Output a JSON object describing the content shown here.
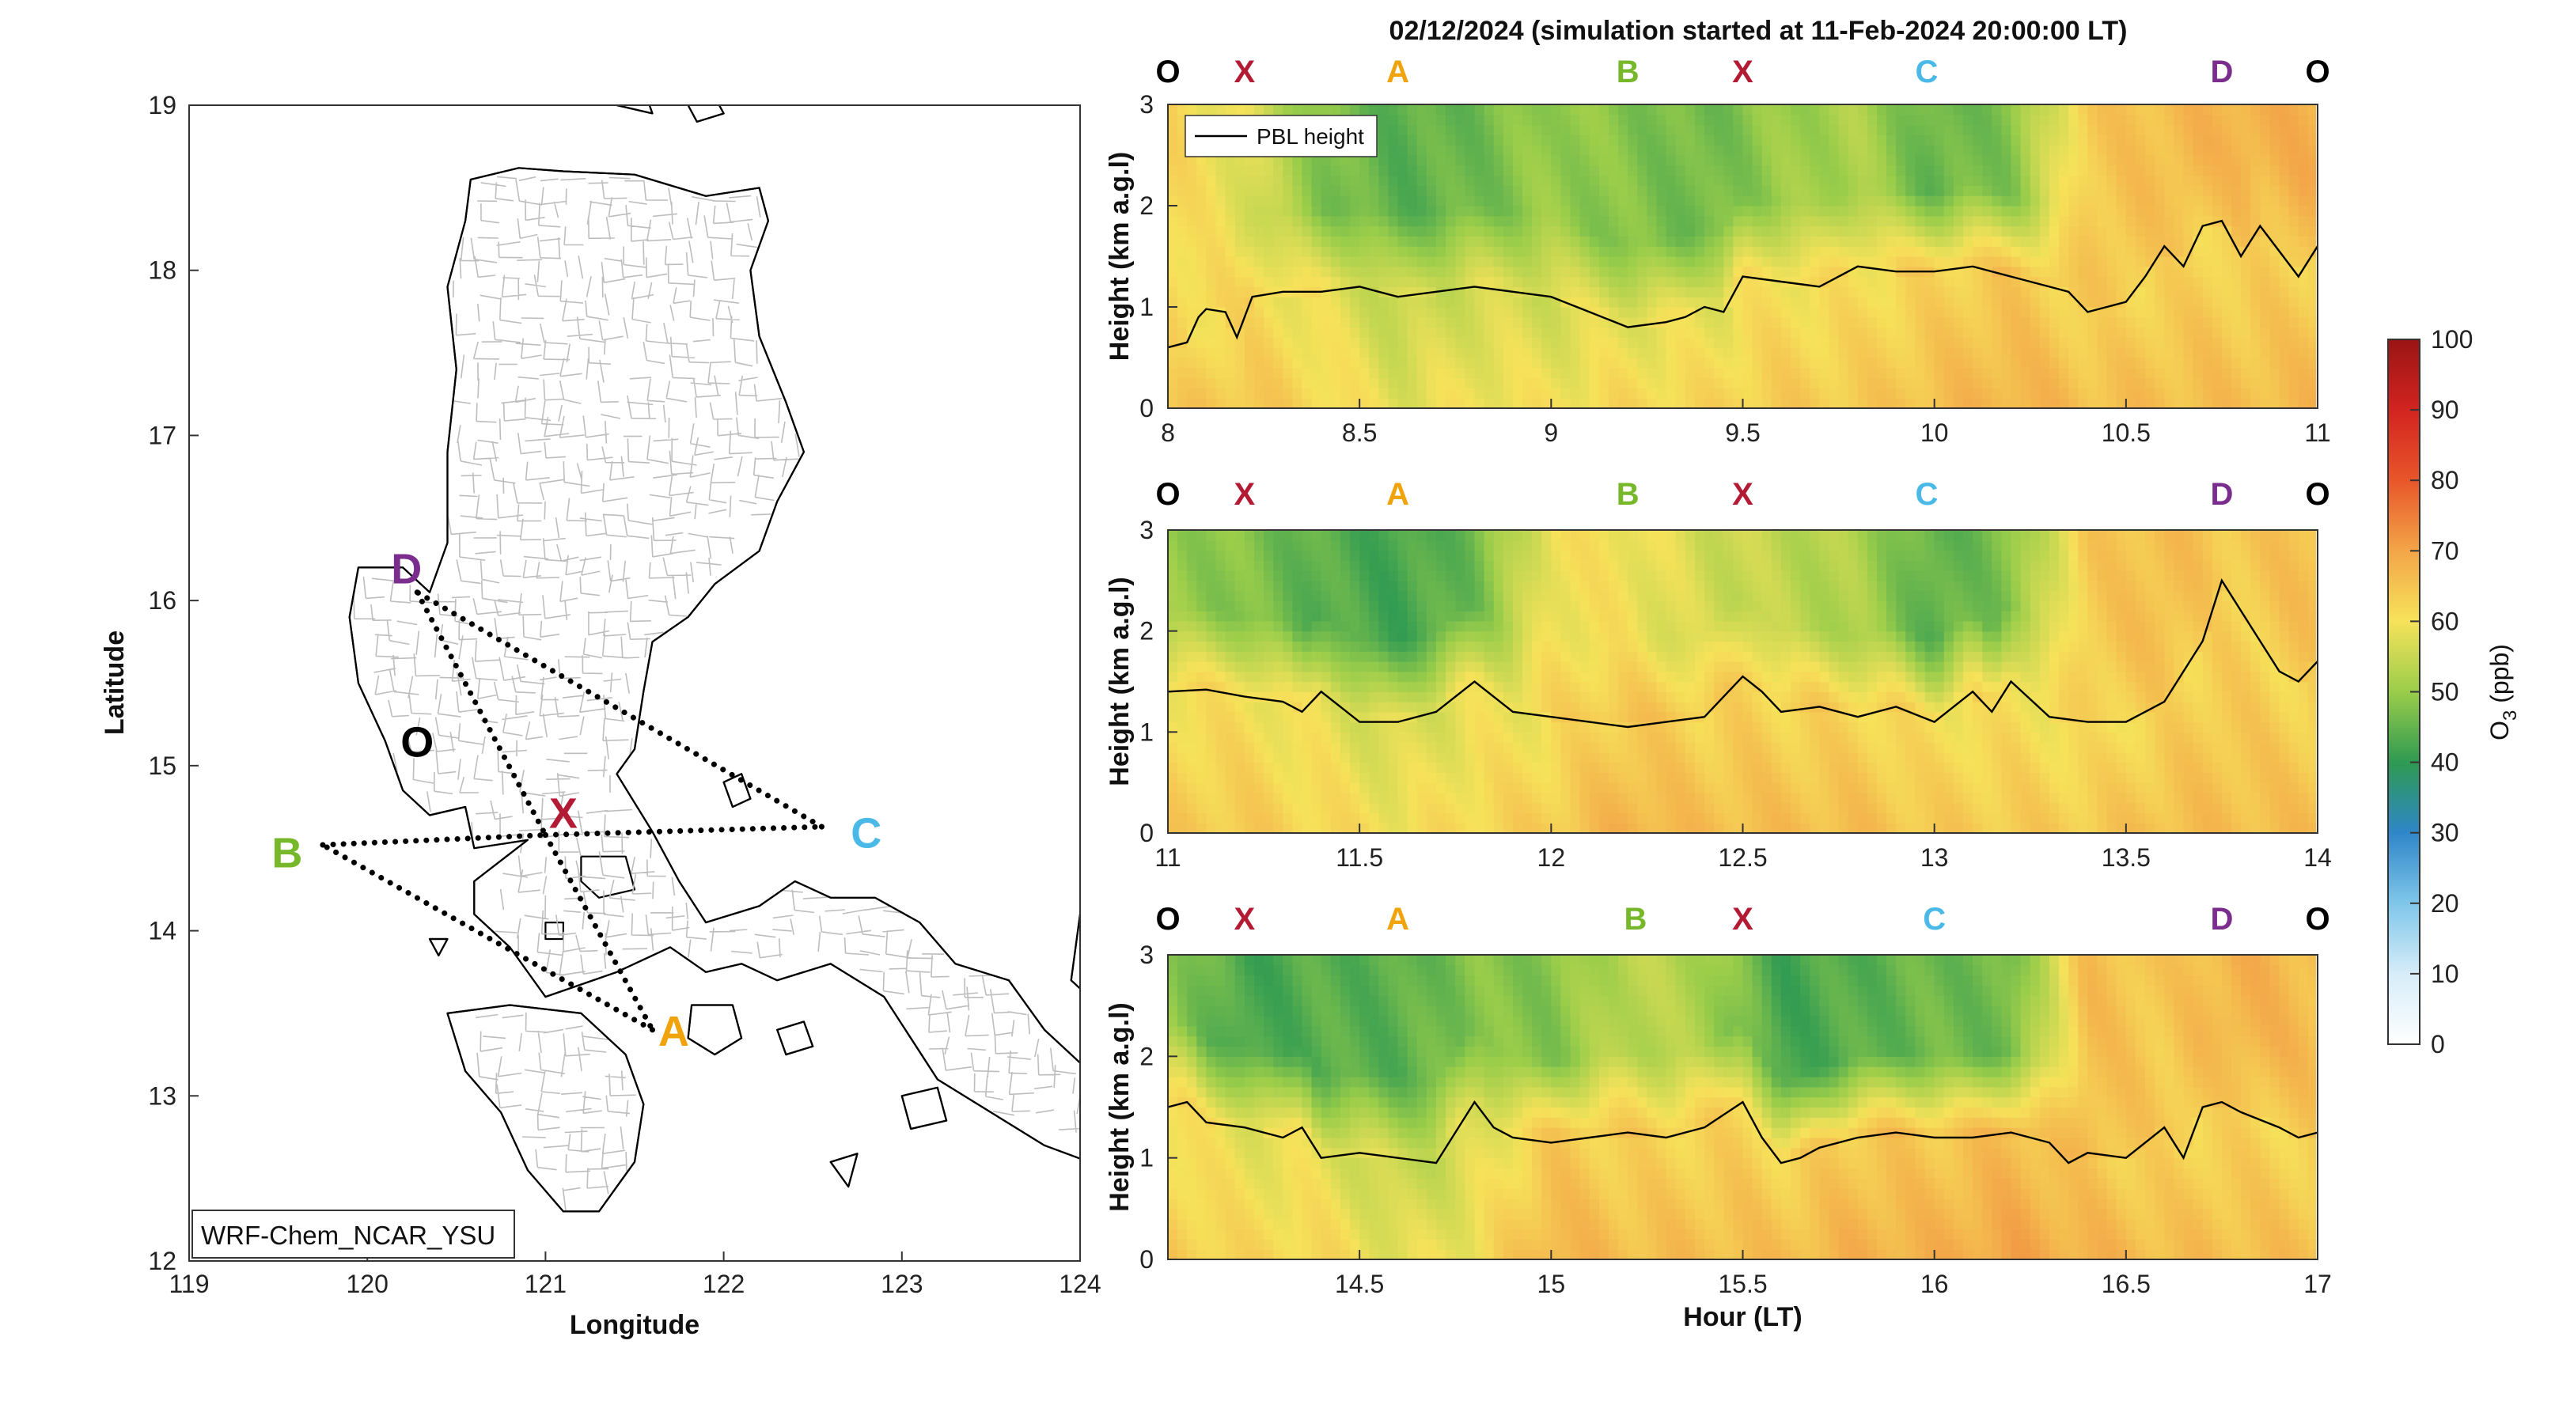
{
  "colors": {
    "O": "#000000",
    "X": "#b31b34",
    "A": "#f0a30a",
    "B": "#76b82a",
    "C": "#4ab9e8",
    "D": "#7b2d8e",
    "pbl_line": "#000000",
    "map_coast": "#000000",
    "map_border": "#bdbdbd",
    "route": "#000000"
  },
  "map": {
    "xlabel": "Longitude",
    "ylabel": "Latitude",
    "xlim": [
      119,
      124
    ],
    "ylim": [
      12,
      19
    ],
    "xticks": [
      "119",
      "120",
      "121",
      "122",
      "123",
      "124"
    ],
    "yticks": [
      "12",
      "13",
      "14",
      "15",
      "16",
      "17",
      "18",
      "19"
    ],
    "model_label": "WRF-Chem_NCAR_YSU",
    "points": [
      {
        "id": "O",
        "lon": 120.15,
        "lat": 15.15,
        "lab_lon": 120.28,
        "lab_lat": 15.15
      },
      {
        "id": "X",
        "lon": 121.0,
        "lat": 14.58,
        "lab_lon": 121.1,
        "lab_lat": 14.72
      },
      {
        "id": "A",
        "lon": 121.6,
        "lat": 13.4,
        "lab_lon": 121.72,
        "lab_lat": 13.4
      },
      {
        "id": "B",
        "lon": 119.75,
        "lat": 14.52,
        "lab_lon": 119.55,
        "lab_lat": 14.48
      },
      {
        "id": "C",
        "lon": 122.55,
        "lat": 14.63,
        "lab_lon": 122.8,
        "lab_lat": 14.6
      },
      {
        "id": "D",
        "lon": 120.28,
        "lat": 16.05,
        "lab_lon": 120.22,
        "lab_lat": 16.2
      }
    ],
    "route_segments": [
      [
        "D",
        "X"
      ],
      [
        "X",
        "A"
      ],
      [
        "A",
        "B"
      ],
      [
        "B",
        "X"
      ],
      [
        "X",
        "C"
      ],
      [
        "C",
        "D"
      ]
    ]
  },
  "chart_data": [
    {
      "type": "heatmap",
      "title": "02/12/2024 (simulation started at 11-Feb-2024 20:00:00 LT)",
      "xlabel": "",
      "ylabel": "Height (km a.g.l)",
      "xlim": [
        8,
        11
      ],
      "ylim": [
        0,
        3
      ],
      "xticks": [
        "8",
        "8.5",
        "9",
        "9.5",
        "10",
        "10.5",
        "11"
      ],
      "yticks": [
        "0",
        "1",
        "2",
        "3"
      ],
      "legend": "PBL height",
      "legend_position": "top-left",
      "markers": [
        {
          "label": "O",
          "hour": 8.0
        },
        {
          "label": "X",
          "hour": 8.2
        },
        {
          "label": "A",
          "hour": 8.6
        },
        {
          "label": "B",
          "hour": 9.2
        },
        {
          "label": "X",
          "hour": 9.5
        },
        {
          "label": "C",
          "hour": 9.98
        },
        {
          "label": "D",
          "hour": 10.75
        },
        {
          "label": "O",
          "hour": 11.0
        }
      ],
      "pbl": {
        "x": [
          8.0,
          8.05,
          8.08,
          8.1,
          8.15,
          8.18,
          8.22,
          8.3,
          8.4,
          8.5,
          8.55,
          8.6,
          8.7,
          8.8,
          8.9,
          9.0,
          9.1,
          9.2,
          9.3,
          9.35,
          9.4,
          9.45,
          9.5,
          9.6,
          9.7,
          9.8,
          9.9,
          10.0,
          10.1,
          10.2,
          10.3,
          10.35,
          10.4,
          10.45,
          10.5,
          10.55,
          10.6,
          10.65,
          10.7,
          10.75,
          10.8,
          10.85,
          10.9,
          10.95,
          11.0
        ],
        "y": [
          0.6,
          0.65,
          0.9,
          0.98,
          0.95,
          0.7,
          1.1,
          1.15,
          1.15,
          1.2,
          1.15,
          1.1,
          1.15,
          1.2,
          1.15,
          1.1,
          0.95,
          0.8,
          0.85,
          0.9,
          1.0,
          0.95,
          1.3,
          1.25,
          1.2,
          1.4,
          1.35,
          1.35,
          1.4,
          1.3,
          1.2,
          1.15,
          0.95,
          1.0,
          1.05,
          1.3,
          1.6,
          1.4,
          1.8,
          1.85,
          1.5,
          1.8,
          1.55,
          1.3,
          1.6
        ]
      },
      "o3_profile_ppb": {
        "x": [
          8.0,
          8.2,
          8.4,
          8.6,
          8.8,
          9.0,
          9.2,
          9.4,
          9.6,
          9.8,
          10.0,
          10.2,
          10.4,
          10.6,
          10.8,
          11.0
        ],
        "below_pbl": [
          62,
          63,
          60,
          56,
          58,
          58,
          60,
          60,
          62,
          62,
          64,
          66,
          64,
          64,
          64,
          65
        ],
        "above_pbl": [
          62,
          58,
          48,
          44,
          46,
          50,
          48,
          46,
          50,
          52,
          45,
          48,
          64,
          66,
          68,
          68
        ]
      }
    },
    {
      "type": "heatmap",
      "title": "",
      "xlabel": "",
      "ylabel": "Height (km a.g.l)",
      "xlim": [
        11,
        14
      ],
      "ylim": [
        0,
        3
      ],
      "xticks": [
        "11",
        "11.5",
        "12",
        "12.5",
        "13",
        "13.5",
        "14"
      ],
      "yticks": [
        "0",
        "1",
        "2",
        "3"
      ],
      "markers": [
        {
          "label": "O",
          "hour": 11.0
        },
        {
          "label": "X",
          "hour": 11.2
        },
        {
          "label": "A",
          "hour": 11.6
        },
        {
          "label": "B",
          "hour": 12.2
        },
        {
          "label": "X",
          "hour": 12.5
        },
        {
          "label": "C",
          "hour": 12.98
        },
        {
          "label": "D",
          "hour": 13.75
        },
        {
          "label": "O",
          "hour": 14.0
        }
      ],
      "pbl": {
        "x": [
          11.0,
          11.1,
          11.2,
          11.3,
          11.35,
          11.4,
          11.5,
          11.6,
          11.7,
          11.8,
          11.9,
          12.0,
          12.1,
          12.2,
          12.3,
          12.4,
          12.5,
          12.55,
          12.6,
          12.7,
          12.8,
          12.9,
          13.0,
          13.1,
          13.15,
          13.2,
          13.3,
          13.4,
          13.5,
          13.55,
          13.6,
          13.7,
          13.75,
          13.8,
          13.85,
          13.9,
          13.95,
          14.0
        ],
        "y": [
          1.4,
          1.42,
          1.35,
          1.3,
          1.2,
          1.4,
          1.1,
          1.1,
          1.2,
          1.5,
          1.2,
          1.15,
          1.1,
          1.05,
          1.1,
          1.15,
          1.55,
          1.4,
          1.2,
          1.25,
          1.15,
          1.25,
          1.1,
          1.4,
          1.2,
          1.5,
          1.15,
          1.1,
          1.1,
          1.2,
          1.3,
          1.9,
          2.5,
          2.2,
          1.9,
          1.6,
          1.5,
          1.7
        ]
      },
      "o3_profile_ppb": {
        "x": [
          11.0,
          11.2,
          11.4,
          11.6,
          11.8,
          12.0,
          12.2,
          12.4,
          12.6,
          12.8,
          13.0,
          13.2,
          13.4,
          13.6,
          13.8,
          14.0
        ],
        "below_pbl": [
          62,
          62,
          60,
          58,
          60,
          62,
          66,
          64,
          64,
          64,
          62,
          62,
          62,
          64,
          64,
          64
        ],
        "above_pbl": [
          50,
          48,
          44,
          42,
          46,
          60,
          60,
          56,
          54,
          52,
          44,
          48,
          64,
          66,
          64,
          66
        ]
      }
    },
    {
      "type": "heatmap",
      "title": "",
      "xlabel": "Hour (LT)",
      "ylabel": "Height (km a.g.l)",
      "xlim": [
        14,
        17
      ],
      "ylim": [
        0,
        3
      ],
      "xticks": [
        "14.5",
        "15",
        "15.5",
        "16",
        "16.5",
        "17"
      ],
      "yticks": [
        "0",
        "1",
        "2",
        "3"
      ],
      "markers": [
        {
          "label": "O",
          "hour": 14.0
        },
        {
          "label": "X",
          "hour": 14.2
        },
        {
          "label": "A",
          "hour": 14.6
        },
        {
          "label": "B",
          "hour": 15.22
        },
        {
          "label": "X",
          "hour": 15.5
        },
        {
          "label": "C",
          "hour": 16.0
        },
        {
          "label": "D",
          "hour": 16.75
        },
        {
          "label": "O",
          "hour": 17.0
        }
      ],
      "pbl": {
        "x": [
          14.0,
          14.05,
          14.1,
          14.2,
          14.3,
          14.35,
          14.4,
          14.5,
          14.6,
          14.7,
          14.8,
          14.85,
          14.9,
          15.0,
          15.1,
          15.2,
          15.3,
          15.4,
          15.5,
          15.55,
          15.6,
          15.65,
          15.7,
          15.8,
          15.9,
          16.0,
          16.1,
          16.2,
          16.3,
          16.35,
          16.4,
          16.5,
          16.6,
          16.65,
          16.7,
          16.75,
          16.8,
          16.9,
          16.95,
          17.0
        ],
        "y": [
          1.5,
          1.55,
          1.35,
          1.3,
          1.2,
          1.3,
          1.0,
          1.05,
          1.0,
          0.95,
          1.55,
          1.3,
          1.2,
          1.15,
          1.2,
          1.25,
          1.2,
          1.3,
          1.55,
          1.2,
          0.95,
          1.0,
          1.1,
          1.2,
          1.25,
          1.2,
          1.2,
          1.25,
          1.15,
          0.95,
          1.05,
          1.0,
          1.3,
          1.0,
          1.5,
          1.55,
          1.45,
          1.3,
          1.2,
          1.25
        ]
      },
      "o3_profile_ppb": {
        "x": [
          14.0,
          14.2,
          14.4,
          14.6,
          14.8,
          15.0,
          15.2,
          15.4,
          15.6,
          15.8,
          16.0,
          16.2,
          16.4,
          16.6,
          16.8,
          17.0
        ],
        "below_pbl": [
          62,
          60,
          60,
          56,
          58,
          66,
          64,
          64,
          64,
          66,
          66,
          68,
          66,
          64,
          64,
          64
        ],
        "above_pbl": [
          50,
          42,
          44,
          44,
          48,
          48,
          54,
          52,
          42,
          44,
          46,
          46,
          66,
          64,
          68,
          66
        ]
      }
    }
  ],
  "colorbar": {
    "label_main": "O",
    "label_sub": "3",
    "label_unit": " (ppb)",
    "min": 0,
    "max": 100,
    "ticks": [
      "0",
      "10",
      "20",
      "30",
      "40",
      "50",
      "60",
      "70",
      "80",
      "90",
      "100"
    ]
  }
}
